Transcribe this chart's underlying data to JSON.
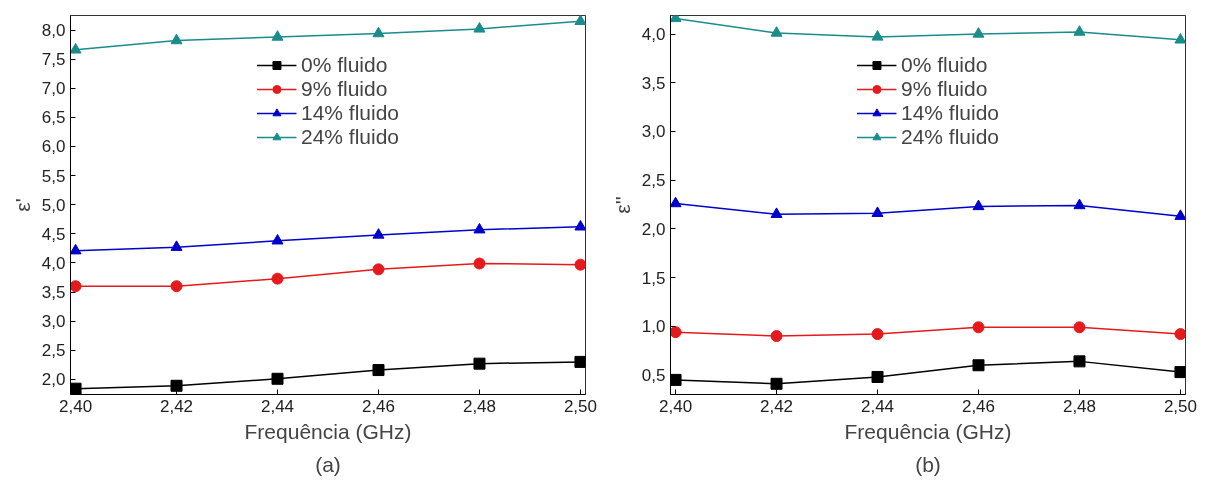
{
  "chart_data": [
    {
      "type": "line",
      "title": "(a)",
      "xlabel": "Frequência (GHz)",
      "ylabel": "ε'",
      "x": [
        2.4,
        2.42,
        2.44,
        2.46,
        2.48,
        2.5
      ],
      "xlim": [
        2.399,
        2.501
      ],
      "ylim": [
        1.74,
        8.25
      ],
      "xticks": [
        {
          "value": 2.4,
          "label": "2,40"
        },
        {
          "value": 2.42,
          "label": "2,42"
        },
        {
          "value": 2.44,
          "label": "2,44"
        },
        {
          "value": 2.46,
          "label": "2,46"
        },
        {
          "value": 2.48,
          "label": "2,48"
        },
        {
          "value": 2.5,
          "label": "2,50"
        }
      ],
      "yticks": [
        {
          "value": 2.0,
          "label": "2,0"
        },
        {
          "value": 2.5,
          "label": "2,5"
        },
        {
          "value": 3.0,
          "label": "3,0"
        },
        {
          "value": 3.5,
          "label": "3,5"
        },
        {
          "value": 4.0,
          "label": "4,0"
        },
        {
          "value": 4.5,
          "label": "4,5"
        },
        {
          "value": 5.0,
          "label": "5,0"
        },
        {
          "value": 5.5,
          "label": "5,5"
        },
        {
          "value": 6.0,
          "label": "6,0"
        },
        {
          "value": 6.5,
          "label": "6,5"
        },
        {
          "value": 7.0,
          "label": "7,0"
        },
        {
          "value": 7.5,
          "label": "7,5"
        },
        {
          "value": 8.0,
          "label": "8,0"
        }
      ],
      "grid": false,
      "legend": "top",
      "line_style": "solid",
      "series": [
        {
          "name": "0% fluido",
          "color": "#000000",
          "marker": "square",
          "values": [
            1.84,
            1.89,
            2.01,
            2.16,
            2.27,
            2.3
          ]
        },
        {
          "name": "9% fluido",
          "color": "#e41a1c",
          "marker": "circle",
          "values": [
            3.6,
            3.6,
            3.73,
            3.89,
            3.99,
            3.97
          ]
        },
        {
          "name": "14% fluido",
          "color": "#0000cc",
          "marker": "triangle",
          "values": [
            4.21,
            4.27,
            4.38,
            4.48,
            4.57,
            4.62
          ]
        },
        {
          "name": "24% fluido",
          "color": "#1a8c8c",
          "marker": "triangle",
          "values": [
            7.66,
            7.82,
            7.88,
            7.94,
            8.02,
            8.15
          ]
        }
      ]
    },
    {
      "type": "line",
      "title": "(b)",
      "xlabel": "Frequência (GHz)",
      "ylabel": "ε''",
      "x": [
        2.4,
        2.42,
        2.44,
        2.46,
        2.48,
        2.5
      ],
      "xlim": [
        2.399,
        2.501
      ],
      "ylim": [
        0.3,
        4.19
      ],
      "xticks": [
        {
          "value": 2.4,
          "label": "2,40"
        },
        {
          "value": 2.42,
          "label": "2,42"
        },
        {
          "value": 2.44,
          "label": "2,44"
        },
        {
          "value": 2.46,
          "label": "2,46"
        },
        {
          "value": 2.48,
          "label": "2,48"
        },
        {
          "value": 2.5,
          "label": "2,50"
        }
      ],
      "yticks": [
        {
          "value": 0.5,
          "label": "0,5"
        },
        {
          "value": 1.0,
          "label": "1,0"
        },
        {
          "value": 1.5,
          "label": "1,5"
        },
        {
          "value": 2.0,
          "label": "2,0"
        },
        {
          "value": 2.5,
          "label": "2,5"
        },
        {
          "value": 3.0,
          "label": "3,0"
        },
        {
          "value": 3.5,
          "label": "3,5"
        },
        {
          "value": 4.0,
          "label": "4,0"
        }
      ],
      "grid": false,
      "legend": "top",
      "line_style": "solid",
      "series": [
        {
          "name": "0% fluido",
          "color": "#000000",
          "marker": "square",
          "values": [
            0.45,
            0.41,
            0.48,
            0.6,
            0.64,
            0.53
          ]
        },
        {
          "name": "9% fluido",
          "color": "#e41a1c",
          "marker": "circle",
          "values": [
            0.94,
            0.9,
            0.92,
            0.99,
            0.99,
            0.92
          ]
        },
        {
          "name": "14% fluido",
          "color": "#0000cc",
          "marker": "triangle",
          "values": [
            2.26,
            2.15,
            2.16,
            2.23,
            2.24,
            2.13
          ]
        },
        {
          "name": "24% fluido",
          "color": "#1a8c8c",
          "marker": "triangle",
          "values": [
            4.16,
            4.01,
            3.97,
            4.0,
            4.02,
            3.94
          ]
        }
      ]
    }
  ]
}
